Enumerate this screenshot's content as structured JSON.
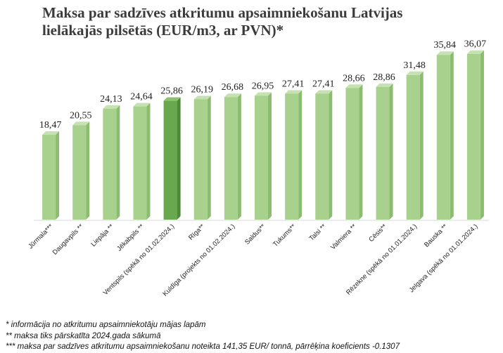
{
  "title_lines": [
    "Maksa par sadzīves atkritumu apsaimniekošanu Latvijas",
    "lielākajās pilsētās (EUR/m3, ar PVN)*"
  ],
  "chart_data": {
    "type": "bar",
    "title": "Maksa par sadzīves atkritumu apsaimniekošanu Latvijas lielākajās pilsētās (EUR/m3, ar PVN)*",
    "categories": [
      "Jūrmala***",
      "Daugavpils **",
      "Liepāja **",
      "Jēkabpils **",
      "Ventspils (spēkā no 01.02.2024.)",
      "Rīga**",
      "Kuldīga (projekts no 01.02.2024.)",
      "Saldus**",
      "Tukums**",
      "Talsi **",
      "Valmiera **",
      "Cēsis**",
      "Rēzekne (spēkā no 01.01.2024.)",
      "Bauska **",
      "Jelgava (spēkā no 01.01.2024.)"
    ],
    "values": [
      18.47,
      20.55,
      24.13,
      24.64,
      25.86,
      26.19,
      26.68,
      26.95,
      27.41,
      27.41,
      28.66,
      28.86,
      31.48,
      35.84,
      36.07
    ],
    "value_labels": [
      "18,47",
      "20,55",
      "24,13",
      "24,64",
      "25,86",
      "26,19",
      "26,68",
      "26,95",
      "27,41",
      "27,41",
      "28,66",
      "28,86",
      "31,48",
      "35,84",
      "36,07"
    ],
    "highlight_index": 4,
    "ylim": [
      0,
      40
    ],
    "grid": false,
    "legend": "none",
    "colors": {
      "bar": "#a9d18e",
      "bar_highlight": "#6aa84f"
    }
  },
  "footnotes": [
    "* informācija no atkritumu apsaimniekotāju mājas lapām",
    "** maksa tiks pārskatīta 2024.gada sākumā",
    "*** maksa par sadzīves atkritumu apsaimniekošanu noteikta  141,35 EUR/ tonnā, pārrēķina koeficients -0.1307"
  ]
}
